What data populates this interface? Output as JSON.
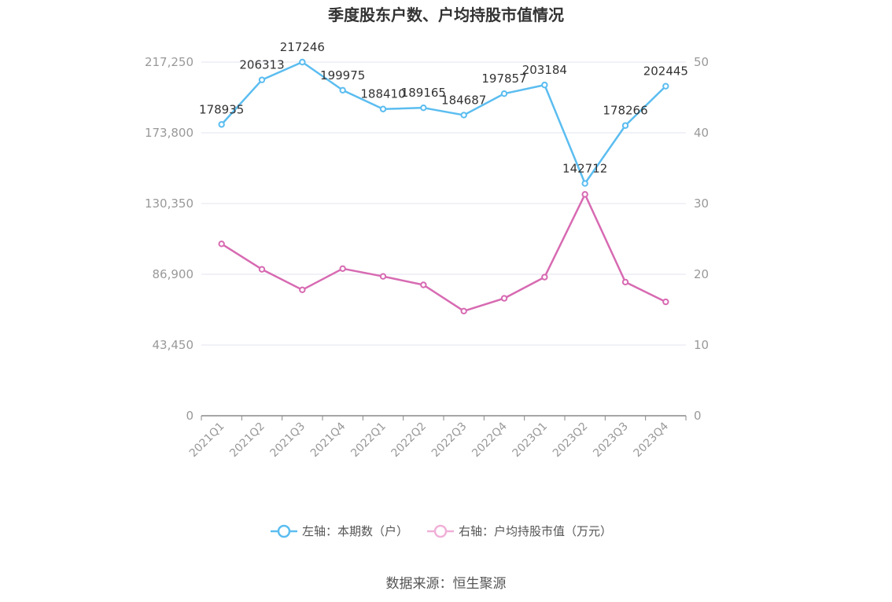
{
  "chart_data": {
    "type": "line",
    "title": "季度股东户数、户均持股市值情况",
    "categories": [
      "2021Q1",
      "2021Q2",
      "2021Q3",
      "2021Q4",
      "2022Q1",
      "2022Q2",
      "2022Q3",
      "2022Q4",
      "2023Q1",
      "2023Q2",
      "2023Q3",
      "2023Q4"
    ],
    "left_axis": {
      "ylim": [
        0,
        217250
      ],
      "ticks": [
        "0",
        "43,450",
        "86,900",
        "130,350",
        "173,800",
        "217,250"
      ]
    },
    "right_axis": {
      "ylim": [
        0,
        50
      ],
      "ticks": [
        "0",
        "10",
        "20",
        "30",
        "40",
        "50"
      ]
    },
    "series": [
      {
        "name": "左轴：本期数（户）",
        "axis": "left",
        "color": "#5bbdf0",
        "values": [
          178935,
          206313,
          217246,
          199975,
          188410,
          189165,
          184687,
          197857,
          203184,
          142712,
          178266,
          202445
        ],
        "labels": [
          "178935",
          "206313",
          "217246",
          "199975",
          "188410",
          "189165",
          "184687",
          "197857",
          "203184",
          "142712",
          "178266",
          "202445"
        ]
      },
      {
        "name": "右轴：户均持股市值（万元）",
        "axis": "right",
        "color": "#d76ab2",
        "values": [
          24.3,
          20.7,
          17.8,
          20.8,
          19.7,
          18.5,
          14.8,
          16.6,
          19.6,
          31.3,
          18.9,
          16.1
        ]
      }
    ],
    "grid": true,
    "legend_position": "bottom"
  },
  "source_text": "数据来源：恒生聚源"
}
